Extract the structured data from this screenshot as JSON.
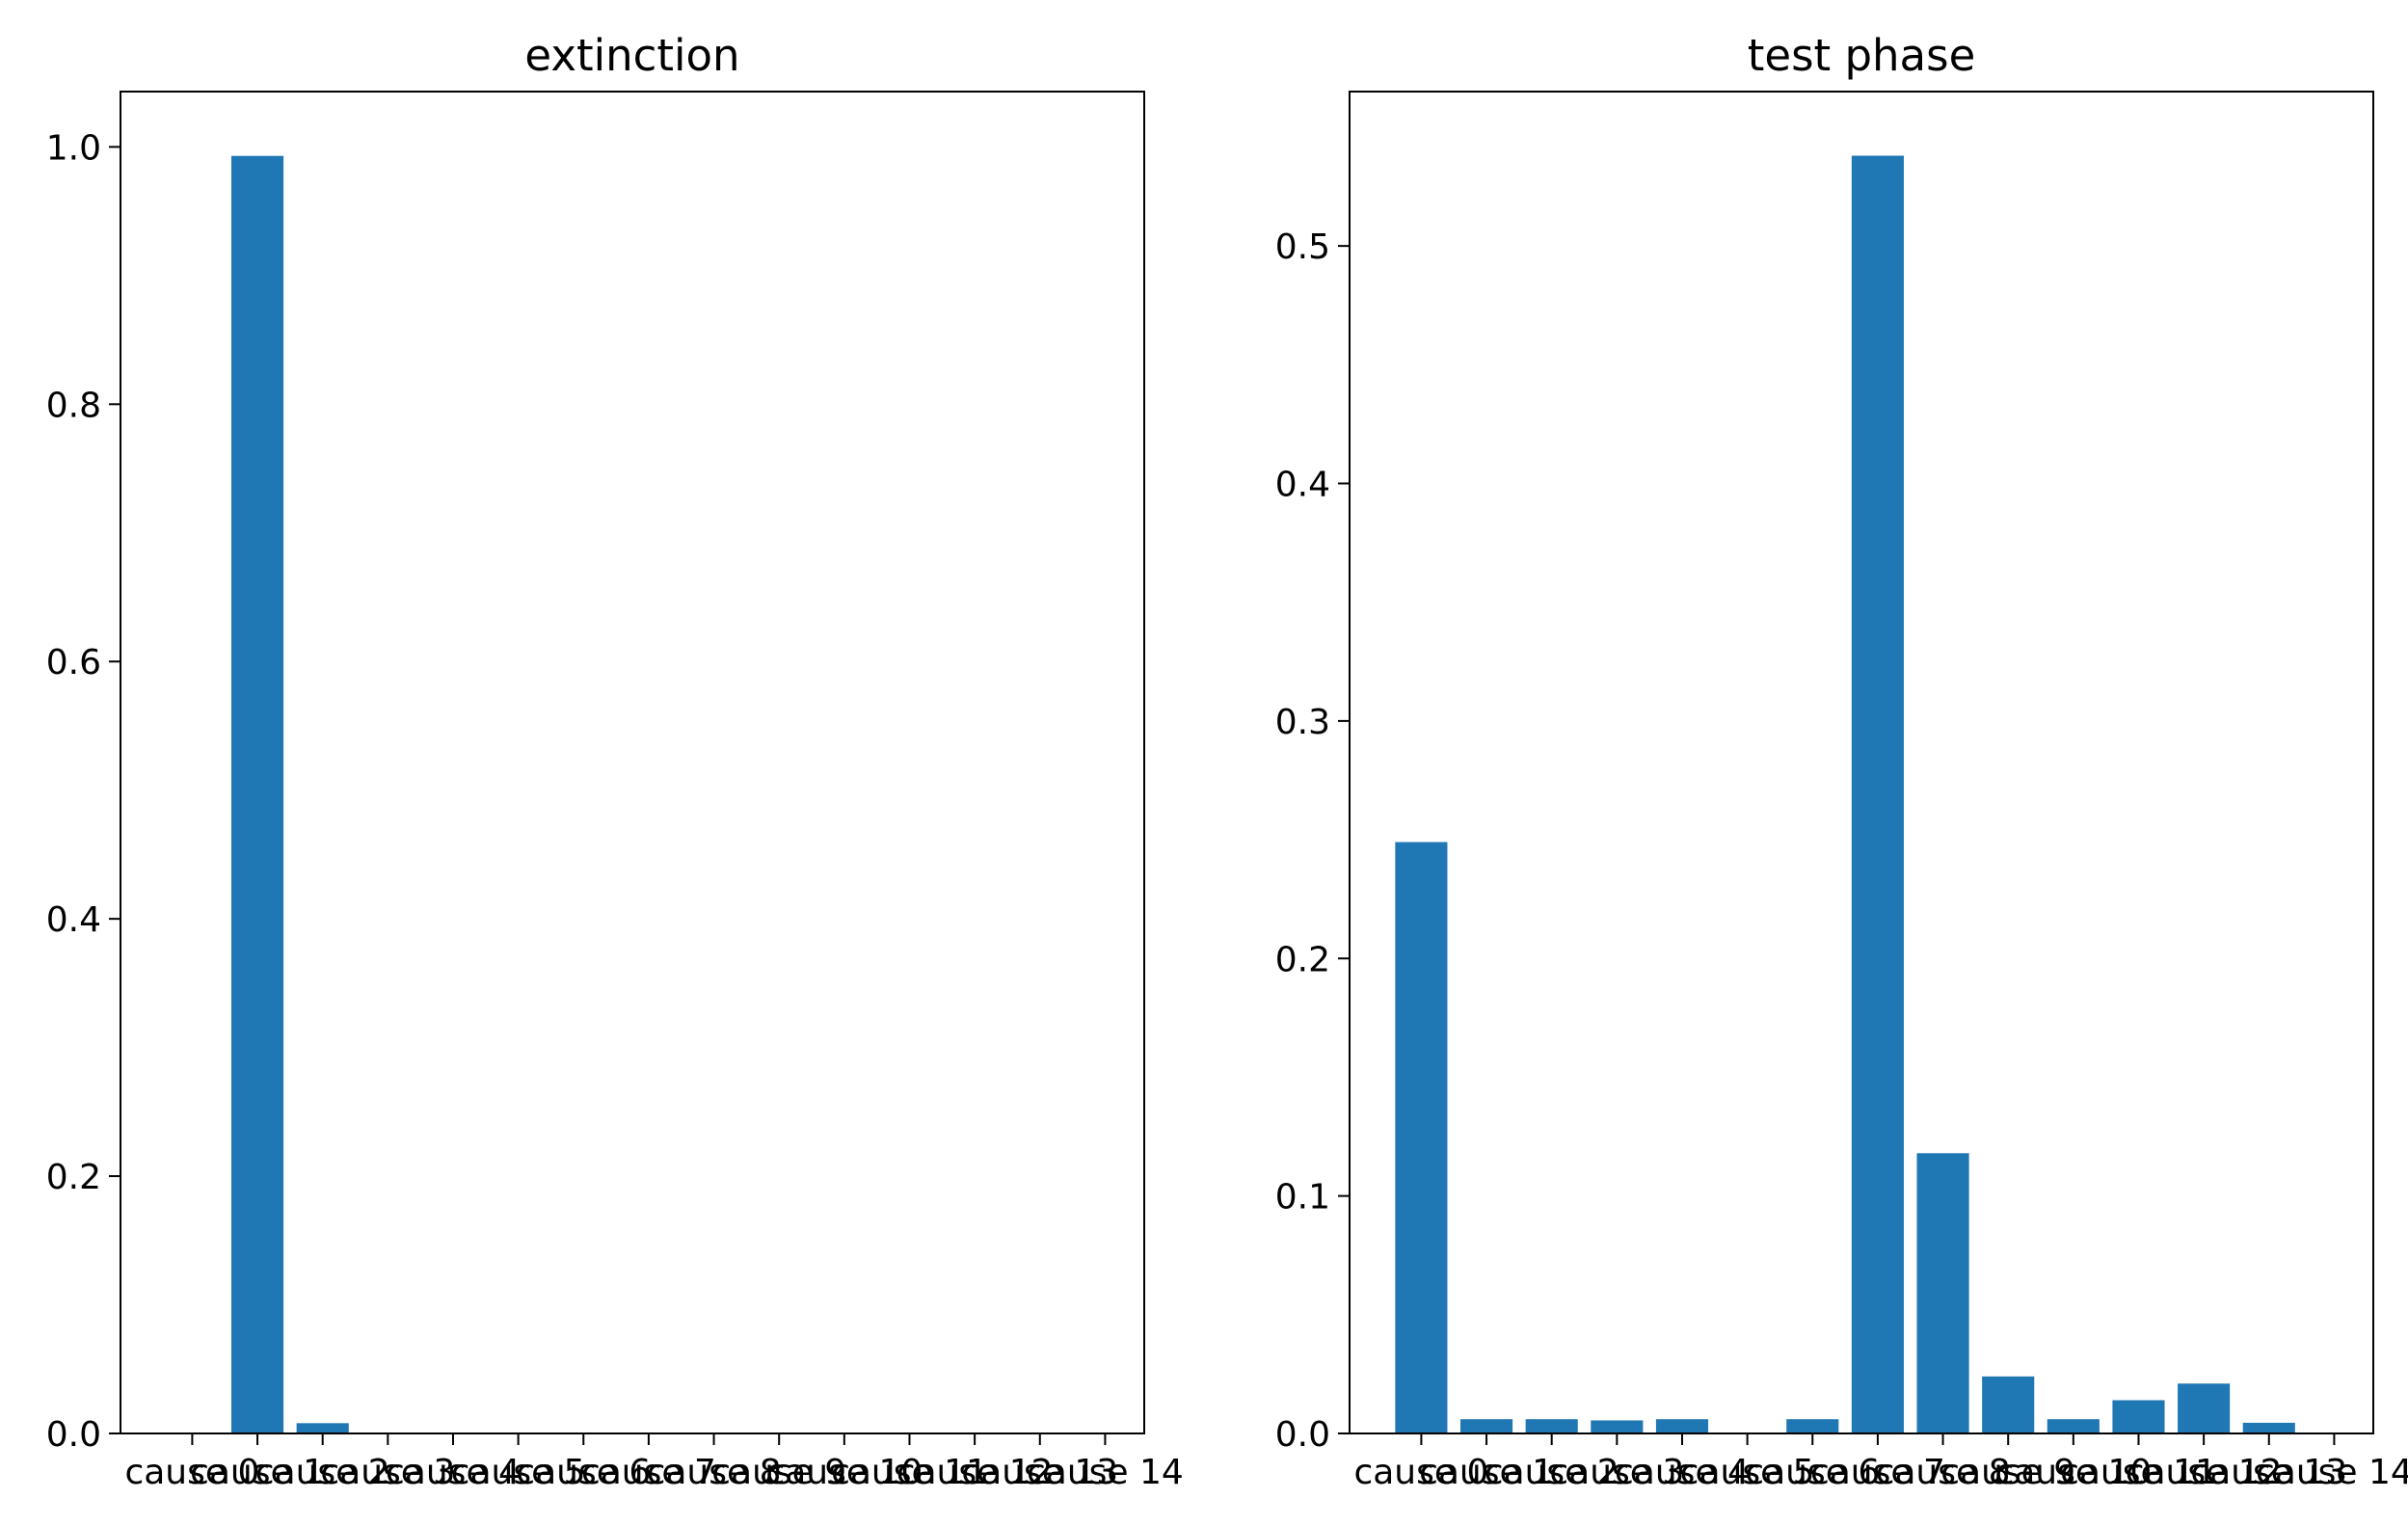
{
  "chart_data": [
    {
      "type": "bar",
      "title": "extinction",
      "xlabel": "",
      "ylabel": "",
      "categories": [
        "cause 0",
        "cause 1",
        "cause 2",
        "cause 3",
        "cause 4",
        "cause 5",
        "cause 6",
        "cause 7",
        "cause 8",
        "cause 9",
        "cause 10",
        "cause 11",
        "cause 12",
        "cause 13",
        "cause 14"
      ],
      "values": [
        0.0,
        0.993,
        0.008,
        0.0,
        0.0,
        0.0,
        0.0,
        0.0,
        0.0,
        0.0,
        0.0,
        0.0,
        0.0,
        0.0,
        0.0
      ],
      "ylim": [
        0,
        1.043
      ],
      "yticks": [
        0.0,
        0.2,
        0.4,
        0.6,
        0.8,
        1.0
      ],
      "ytick_labels": [
        "0.0",
        "0.2",
        "0.4",
        "0.6",
        "0.8",
        "1.0"
      ],
      "color": "#1f77b4",
      "grid": false,
      "legend": "none"
    },
    {
      "type": "bar",
      "title": "test phase",
      "xlabel": "",
      "ylabel": "",
      "categories": [
        "cause 0",
        "cause 1",
        "cause 2",
        "cause 3",
        "cause 4",
        "cause 5",
        "cause 6",
        "cause 7",
        "cause 8",
        "cause 9",
        "cause 10",
        "cause 11",
        "cause 12",
        "cause 13",
        "cause 14"
      ],
      "values": [
        0.249,
        0.006,
        0.006,
        0.0055,
        0.006,
        0.0,
        0.006,
        0.538,
        0.118,
        0.024,
        0.006,
        0.014,
        0.021,
        0.0045,
        0.0
      ],
      "ylim": [
        0,
        0.565
      ],
      "yticks": [
        0.0,
        0.1,
        0.2,
        0.3,
        0.4,
        0.5
      ],
      "ytick_labels": [
        "0.0",
        "0.1",
        "0.2",
        "0.3",
        "0.4",
        "0.5"
      ],
      "color": "#1f77b4",
      "grid": false,
      "legend": "none"
    }
  ]
}
